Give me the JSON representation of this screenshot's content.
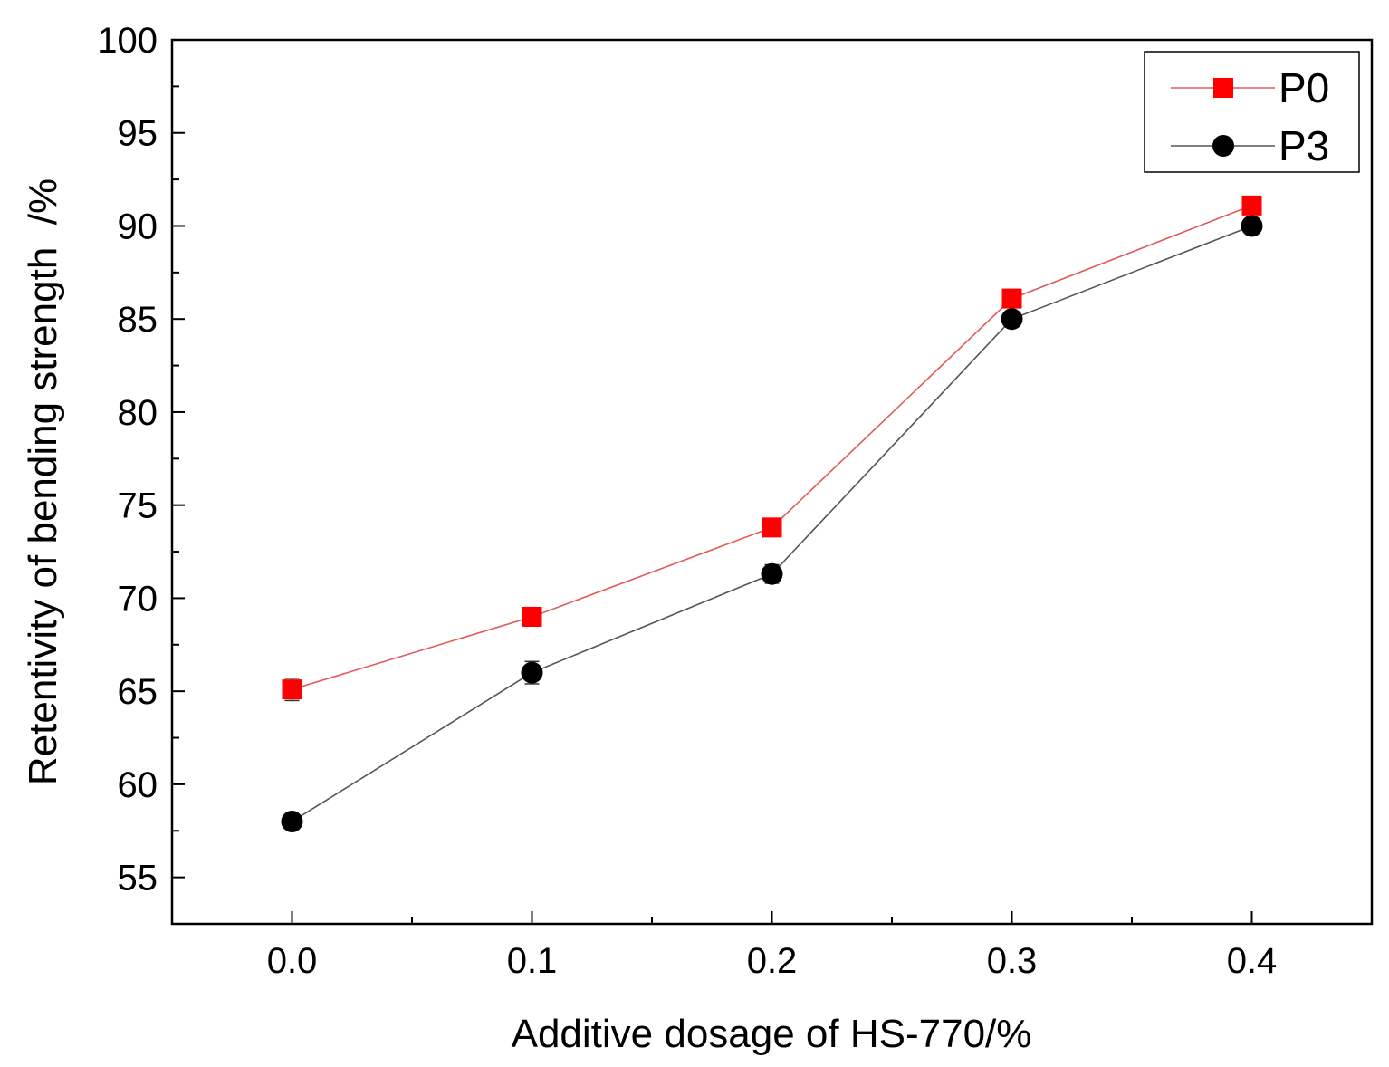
{
  "chart_data": {
    "type": "line",
    "title": "",
    "xlabel": "Additive dosage of HS-770/%",
    "ylabel": "Retentivity of bending strength  /%",
    "x": [
      0.0,
      0.1,
      0.2,
      0.3,
      0.4
    ],
    "xlim": [
      -0.05,
      0.45
    ],
    "ylim": [
      52.5,
      100
    ],
    "x_ticks": [
      "0.0",
      "0.1",
      "0.2",
      "0.3",
      "0.4"
    ],
    "y_ticks": [
      "55",
      "60",
      "65",
      "70",
      "75",
      "80",
      "85",
      "90",
      "95",
      "100"
    ],
    "legend_position": "top-right",
    "grid": false,
    "series": [
      {
        "name": "P0",
        "marker": "square",
        "color": "#ff0000",
        "line_color": "#e05a5a",
        "values": [
          65.1,
          69.0,
          73.8,
          86.1,
          91.1
        ],
        "errors": [
          0.6,
          0.5,
          0.4,
          0.3,
          0.3
        ]
      },
      {
        "name": "P3",
        "marker": "circle",
        "color": "#000000",
        "line_color": "#555555",
        "values": [
          58.0,
          66.0,
          71.3,
          85.0,
          90.0
        ],
        "errors": [
          0.4,
          0.6,
          0.5,
          0.4,
          0.3
        ]
      }
    ]
  }
}
